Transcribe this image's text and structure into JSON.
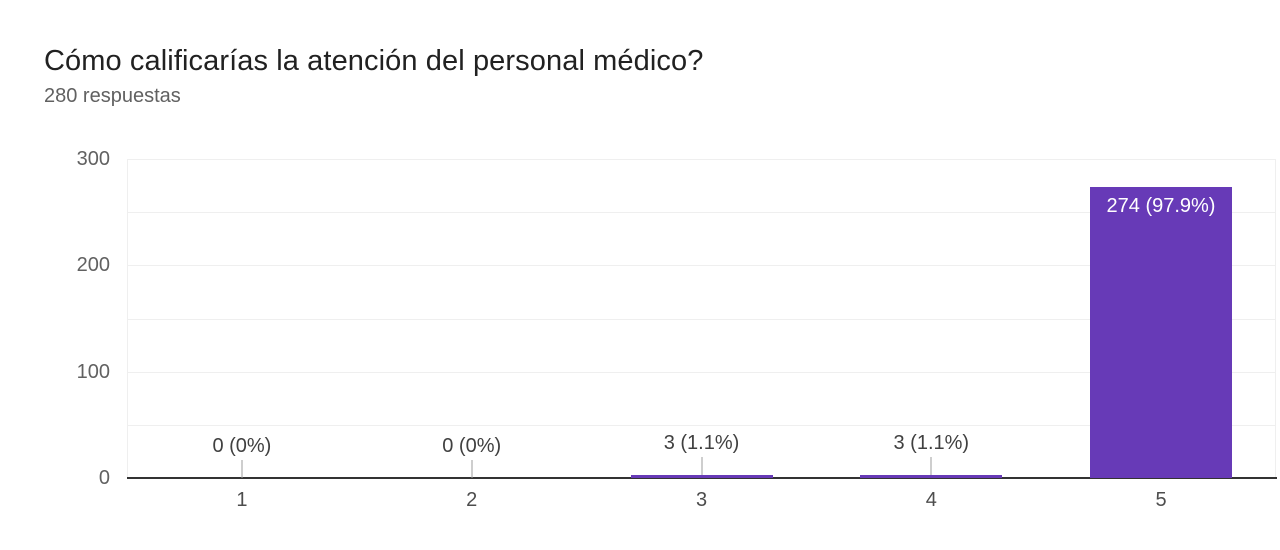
{
  "header": {
    "title": "Cómo calificarías la atención del personal médico?",
    "subtitle": "280 respuestas"
  },
  "chart_data": {
    "type": "bar",
    "title": "Cómo calificarías la atención del personal médico?",
    "subtitle": "280 respuestas",
    "categories": [
      "1",
      "2",
      "3",
      "4",
      "5"
    ],
    "values": [
      0,
      0,
      3,
      3,
      274
    ],
    "data_labels": [
      "0 (0%)",
      "0 (0%)",
      "3 (1.1%)",
      "3 (1.1%)",
      "274 (97.9%)"
    ],
    "xlabel": "",
    "ylabel": "",
    "ylim": [
      0,
      300
    ],
    "y_ticks": [
      0,
      100,
      200,
      300
    ],
    "grid": true,
    "grid_step": 50,
    "legend_position": "none",
    "colors": {
      "bar": "#673ab7",
      "annotation": "#404040",
      "annotation_inside": "#ffffff",
      "gridline": "#efefef",
      "axis_line": "#333333",
      "tick_label": "#616161"
    }
  }
}
